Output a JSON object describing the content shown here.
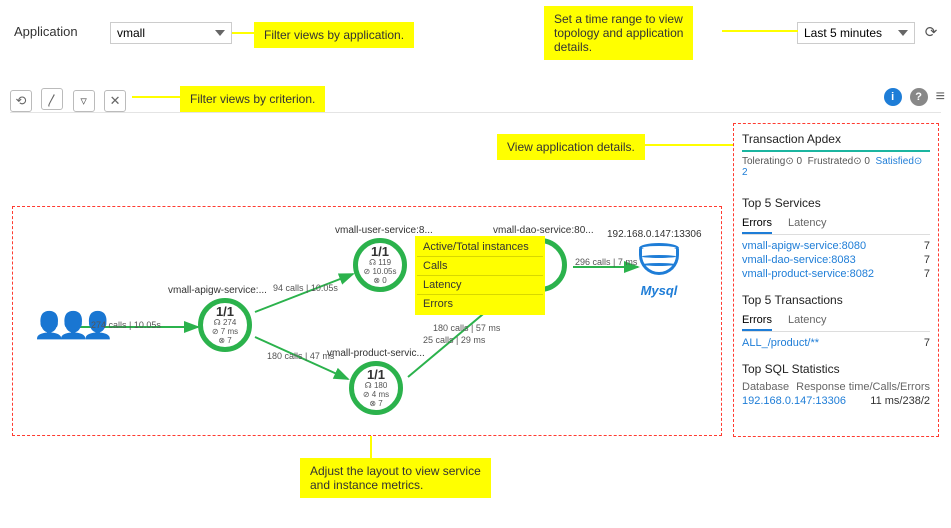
{
  "topbar": {
    "application_label": "Application",
    "application_value": "vmall",
    "timerange_value": "Last 5 minutes"
  },
  "callouts": {
    "filter_app": "Filter views by application.",
    "time_range": "Set a time range to view\ntopology and application\ndetails.",
    "filter_crit": "Filter views by criterion.",
    "view_details": "View application details.",
    "adjust": "Adjust the layout to view service\nand instance metrics."
  },
  "toolbar_icons": {
    "recent": "⟲",
    "trend": "〳",
    "filter": "▿",
    "clear": "✕",
    "info": "i",
    "help": "?",
    "settings": "≡",
    "refresh": "⟳"
  },
  "topology": {
    "edge_color_default": "#2bb24c",
    "edge_color_active": "#f2c200",
    "users_label": "",
    "mysql_label": "Mysql",
    "db_host": "192.168.0.147:13306",
    "services": {
      "apigw": {
        "label": "vmall-apigw-service:...",
        "ratio": "1/1",
        "calls": "274",
        "latency": "7 ms",
        "errors": "7"
      },
      "user": {
        "label": "vmall-user-service:8...",
        "ratio": "1/1",
        "calls": "119",
        "latency": "10.05s",
        "errors": "0"
      },
      "dao": {
        "label": "vmall-dao-service:80...",
        "ratio": "",
        "calls": "",
        "latency": "",
        "errors": ""
      },
      "product": {
        "label": "vmall-product-servic...",
        "ratio": "1/1",
        "calls": "180",
        "latency": "4 ms",
        "errors": "7"
      }
    },
    "edges": {
      "users_apigw": "274 calls | 10.05s",
      "apigw_user": "94 calls | 10.05s",
      "apigw_product": "180 calls | 47 ms",
      "user_dao": "25 calls | 29 ms",
      "product_dao": "180 calls | 57 ms",
      "dao_mysql": "296 calls | 7 ms"
    }
  },
  "legend": {
    "l1": "Active/Total instances",
    "l2": "Calls",
    "l3": "Latency",
    "l4": "Errors"
  },
  "apdex": {
    "title": "Transaction Apdex",
    "tolerating_lbl": "Tolerating",
    "tolerating_v": "0",
    "frustrated_lbl": "Frustrated",
    "frustrated_v": "0",
    "satisfied_lbl": "Satisfied",
    "satisfied_v": "2"
  },
  "top_services": {
    "title": "Top 5 Services",
    "tab_errors": "Errors",
    "tab_latency": "Latency",
    "rows": [
      {
        "name": "vmall-apigw-service:8080",
        "val": "7"
      },
      {
        "name": "vmall-dao-service:8083",
        "val": "7"
      },
      {
        "name": "vmall-product-service:8082",
        "val": "7"
      }
    ]
  },
  "top_tx": {
    "title": "Top 5 Transactions",
    "tab_errors": "Errors",
    "tab_latency": "Latency",
    "rows": [
      {
        "name": "ALL_/product/**",
        "val": "7"
      }
    ]
  },
  "top_sql": {
    "title": "Top SQL Statistics",
    "col1": "Database",
    "col2": "Response time/Calls/Errors",
    "rows": [
      {
        "name": "192.168.0.147:13306",
        "val": "11 ms/238/2"
      }
    ]
  },
  "icon_prefix": {
    "calls": "☊ ",
    "latency": "⊘ ",
    "errors": "⊗ "
  }
}
